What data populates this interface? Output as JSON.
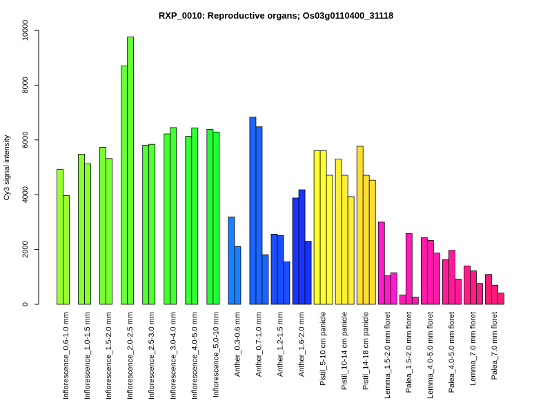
{
  "chart_data": {
    "type": "bar",
    "title": "RXP_0010: Reproductive organs; Os03g0110400_31118",
    "xlabel": "",
    "ylabel": "Cy3 signal intensity",
    "ylim": [
      0,
      10000
    ],
    "yticks": [
      "0",
      "2000",
      "4000",
      "6000",
      "8000",
      "10000"
    ],
    "grid": false,
    "legend": "none",
    "groups": [
      {
        "label": "Inflorescence_0.6-1.0 mm",
        "color": "#99ff33",
        "values": [
          4930,
          3970
        ]
      },
      {
        "label": "Inflorescence_1.0-1.5 mm",
        "color": "#88ff33",
        "values": [
          5480,
          5130
        ]
      },
      {
        "label": "Inflorescence_1.5-2.0 mm",
        "color": "#77ff33",
        "values": [
          5730,
          5320
        ]
      },
      {
        "label": "Inflorescence_2.0-2.5 mm",
        "color": "#66ff33",
        "values": [
          8700,
          9760
        ]
      },
      {
        "label": "Inflorescence_2.5-3.0 mm",
        "color": "#55ff33",
        "values": [
          5810,
          5840
        ]
      },
      {
        "label": "Inflorescence_3.0-4.0 mm",
        "color": "#44ff33",
        "values": [
          6220,
          6450
        ]
      },
      {
        "label": "Inflorescence_4.0-5.0 mm",
        "color": "#33ff33",
        "values": [
          6130,
          6440
        ]
      },
      {
        "label": "Inflorescence_5.0-10 mm",
        "color": "#22ff33",
        "values": [
          6390,
          6290
        ]
      },
      {
        "label": "Anther_0.3-0.6 mm",
        "color": "#1a80ff",
        "values": [
          3190,
          2110
        ]
      },
      {
        "label": "Anther_0.7-1.0 mm",
        "color": "#1a66ff",
        "values": [
          6830,
          6480,
          1810
        ]
      },
      {
        "label": "Anther_1.2-1.5 mm",
        "color": "#1a4dff",
        "values": [
          2560,
          2510,
          1550
        ]
      },
      {
        "label": "Anther_1.6-2.0 mm",
        "color": "#1a33ff",
        "values": [
          3880,
          4180,
          2300
        ]
      },
      {
        "label": "Pistil_5-10 cm panicle",
        "color": "#ffff33",
        "values": [
          5610,
          5610,
          4710
        ]
      },
      {
        "label": "Pistil_10-14 cm panicle",
        "color": "#ffee33",
        "values": [
          5300,
          4710,
          3930
        ]
      },
      {
        "label": "Pistil_14-18 cm panicle",
        "color": "#ffdd33",
        "values": [
          5770,
          4710,
          4530
        ]
      },
      {
        "label": "Lemma_1.5-2.0 mm floret",
        "color": "#ff1acc",
        "values": [
          3000,
          1040,
          1150
        ]
      },
      {
        "label": "Palea_1.5-2.0 mm floret",
        "color": "#ff1ab8",
        "values": [
          340,
          2580,
          260
        ]
      },
      {
        "label": "Lemma_4.0-5.0 mm floret",
        "color": "#ff1aa8",
        "values": [
          2430,
          2330,
          1870
        ]
      },
      {
        "label": "Palea_4.0-5.0 mm floret",
        "color": "#ff1a99",
        "values": [
          1630,
          1970,
          920
        ]
      },
      {
        "label": "Lemma_7.0 mm floret",
        "color": "#ff1a88",
        "values": [
          1400,
          1220,
          760
        ]
      },
      {
        "label": "Palea_7.0 mm floret",
        "color": "#ff1a77",
        "values": [
          1090,
          700,
          410
        ]
      }
    ]
  }
}
